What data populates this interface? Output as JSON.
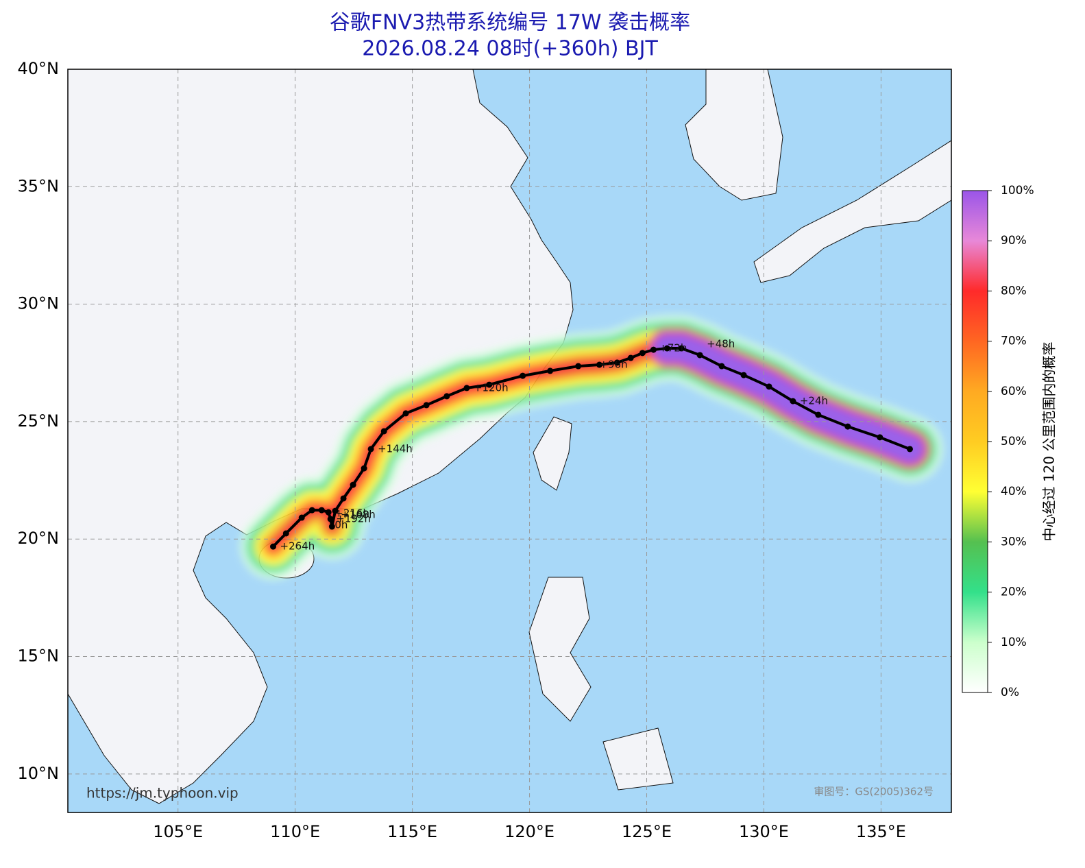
{
  "map": {
    "title": "谷歌FNV3热带系统编号 17W 袭击概率",
    "subtitle": "2026.08.24 08时(+360h) BJT",
    "xlim": [
      100.3,
      138.0
    ],
    "ylim": [
      8.36,
      40.0
    ],
    "xticks": [
      {
        "value": 105,
        "label": "105°E"
      },
      {
        "value": 110,
        "label": "110°E"
      },
      {
        "value": 115,
        "label": "115°E"
      },
      {
        "value": 120,
        "label": "120°E"
      },
      {
        "value": 125,
        "label": "125°E"
      },
      {
        "value": 130,
        "label": "130°E"
      },
      {
        "value": 135,
        "label": "135°E"
      }
    ],
    "yticks": [
      {
        "value": 10,
        "label": "10°N"
      },
      {
        "value": 15,
        "label": "15°N"
      },
      {
        "value": 20,
        "label": "20°N"
      },
      {
        "value": 25,
        "label": "25°N"
      },
      {
        "value": 30,
        "label": "30°N"
      },
      {
        "value": 35,
        "label": "35°N"
      },
      {
        "value": 40,
        "label": "40°N"
      }
    ],
    "grid": true,
    "track": {
      "color": "#000000",
      "lon": [
        136.23,
        134.95,
        133.58,
        132.32,
        131.24,
        130.22,
        129.14,
        128.2,
        127.27,
        126.48,
        125.87,
        125.29,
        124.82,
        124.32,
        123.74,
        122.98,
        122.08,
        120.88,
        119.71,
        118.28,
        117.32,
        116.47,
        115.6,
        114.72,
        113.79,
        113.23,
        112.94,
        112.47,
        112.06,
        111.71,
        111.57,
        111.51,
        111.42,
        111.13,
        110.72,
        110.28,
        109.61,
        109.06
      ],
      "lat": [
        23.83,
        24.33,
        24.79,
        25.29,
        25.87,
        26.49,
        26.98,
        27.36,
        27.83,
        28.12,
        28.12,
        28.06,
        27.92,
        27.71,
        27.51,
        27.42,
        27.36,
        27.16,
        26.95,
        26.57,
        26.43,
        26.08,
        25.7,
        25.35,
        24.59,
        23.83,
        23.01,
        22.31,
        21.73,
        21.2,
        20.53,
        20.85,
        21.14,
        21.23,
        21.23,
        20.91,
        20.24,
        19.68
      ]
    },
    "track_labels": [
      "+24h",
      "+48h",
      "+72h",
      "+96h",
      "+120h",
      "+144h",
      "+168h",
      "0h",
      "+216h",
      "+192h",
      "+264h"
    ],
    "colorbar": {
      "label": "中心经过 120 公里范围内的概率",
      "ticks": [
        {
          "value": 0,
          "label": "0%"
        },
        {
          "value": 10,
          "label": "10%"
        },
        {
          "value": 20,
          "label": "20%"
        },
        {
          "value": 30,
          "label": "30%"
        },
        {
          "value": 40,
          "label": "40%"
        },
        {
          "value": 50,
          "label": "50%"
        },
        {
          "value": 60,
          "label": "60%"
        },
        {
          "value": 70,
          "label": "70%"
        },
        {
          "value": 80,
          "label": "80%"
        },
        {
          "value": 90,
          "label": "90%"
        },
        {
          "value": 100,
          "label": "100%"
        }
      ]
    },
    "url": "https://jm.typhoon.vip",
    "watermark": "审图号：GS(2005)362号"
  }
}
